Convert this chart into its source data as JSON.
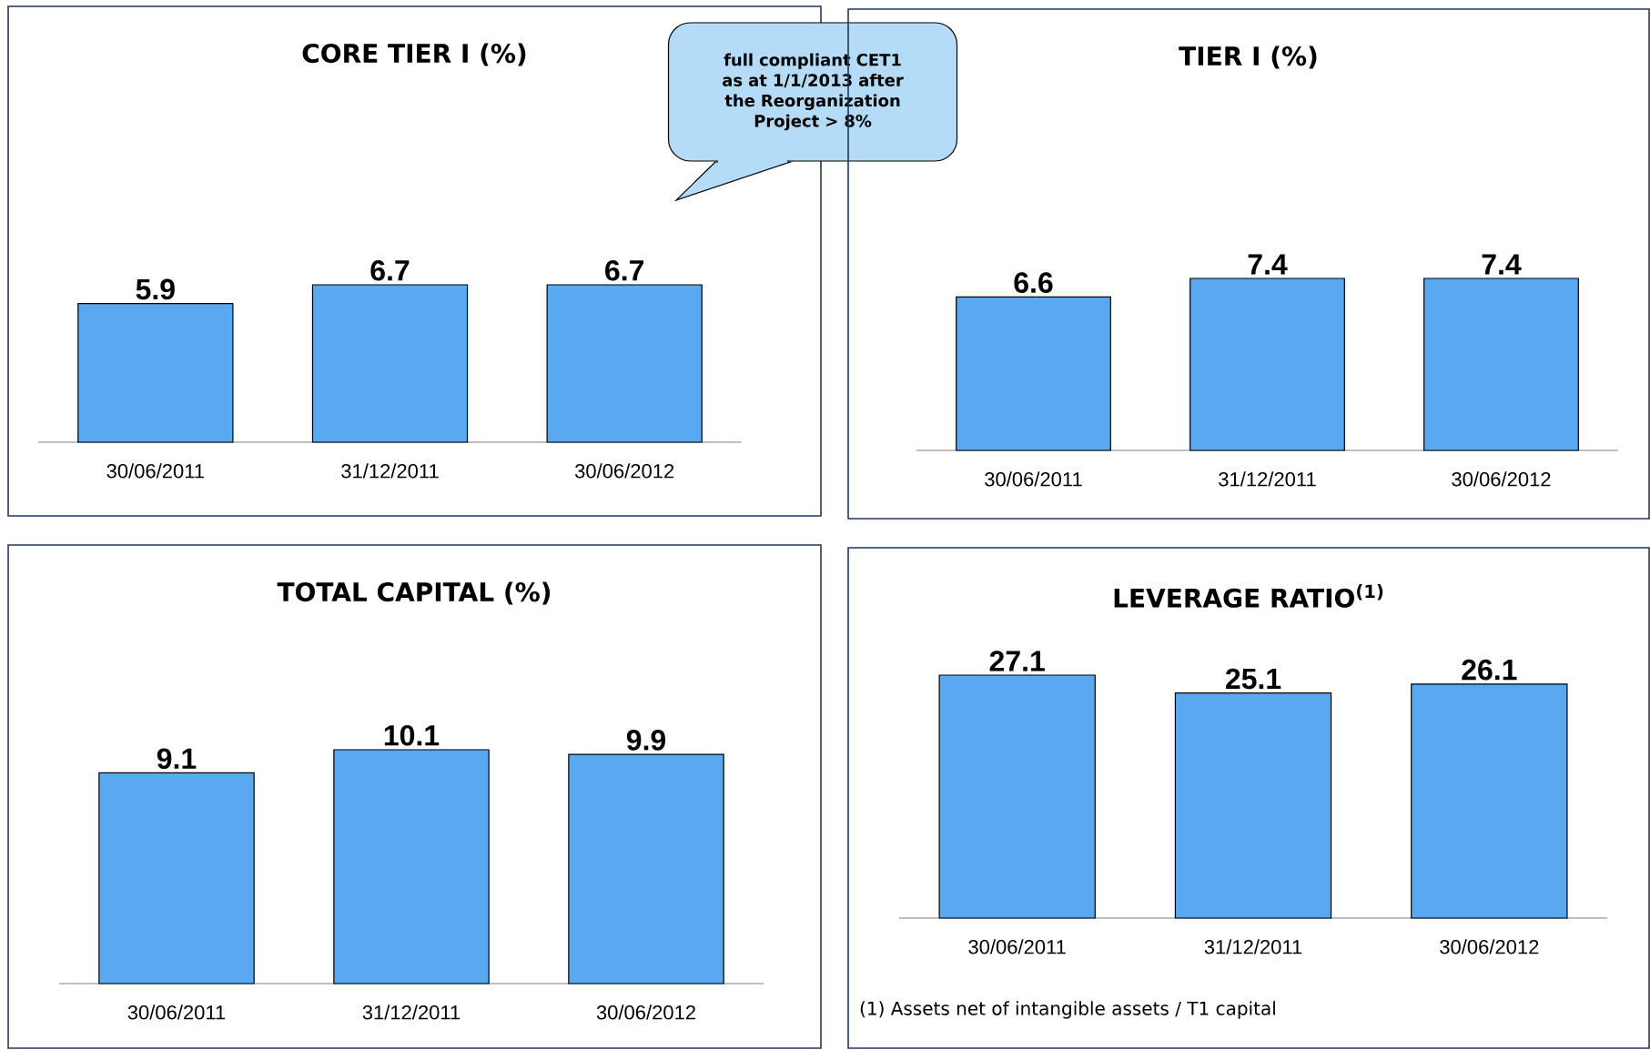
{
  "chart_data": [
    {
      "type": "bar",
      "title": "CORE TIER I (%)",
      "categories": [
        "30/06/2011",
        "31/12/2011",
        "30/06/2012"
      ],
      "values": [
        5.9,
        6.7,
        6.7
      ],
      "color": "#5aa9f0",
      "data_labels": true,
      "annotations": [
        "full compliant CET1 as at 1/1/2013 after the Reorganization Project > 8%"
      ]
    },
    {
      "type": "bar",
      "title": "TIER I (%)",
      "categories": [
        "30/06/2011",
        "31/12/2011",
        "30/06/2012"
      ],
      "values": [
        6.6,
        7.4,
        7.4
      ],
      "color": "#5aa9f0",
      "data_labels": true
    },
    {
      "type": "bar",
      "title": "TOTAL CAPITAL (%)",
      "categories": [
        "30/06/2011",
        "31/12/2011",
        "30/06/2012"
      ],
      "values": [
        9.1,
        10.1,
        9.9
      ],
      "color": "#5aa9f0",
      "data_labels": true
    },
    {
      "type": "bar",
      "title": "LEVERAGE RATIO$^{(1)}$",
      "categories": [
        "30/06/2011",
        "31/12/2011",
        "30/06/2012"
      ],
      "values": [
        27.1,
        25.1,
        26.1
      ],
      "color": "#5aa9f0",
      "data_labels": true,
      "annotations": [
        "(1) Assets net of intangible assets / T1 capital"
      ]
    }
  ]
}
